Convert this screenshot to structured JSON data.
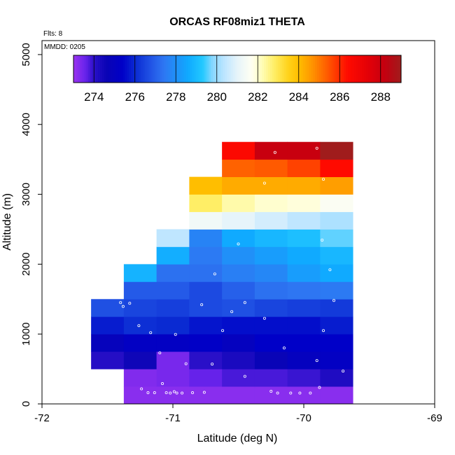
{
  "colors": {
    "background": "#ffffff",
    "frame": "#000000",
    "point": "#ffffff",
    "palette": [
      [
        273,
        "#9b34f0"
      ],
      [
        273.6,
        "#6622ea"
      ],
      [
        274,
        "#2a10c8"
      ],
      [
        274.6,
        "#0a04b5"
      ],
      [
        275.4,
        "#0000c8"
      ],
      [
        276,
        "#0a2ad2"
      ],
      [
        276.8,
        "#2255e6"
      ],
      [
        277.4,
        "#2e76f2"
      ],
      [
        278,
        "#2090f8"
      ],
      [
        278.6,
        "#10aaff"
      ],
      [
        279.3,
        "#22c8ff"
      ],
      [
        279.8,
        "#8ad8ff"
      ],
      [
        280.4,
        "#bfe6ff"
      ],
      [
        281,
        "#e6f4fa"
      ],
      [
        281.7,
        "#fffff2"
      ],
      [
        282.2,
        "#fffdb8"
      ],
      [
        282.8,
        "#ffee66"
      ],
      [
        283.5,
        "#ffd21a"
      ],
      [
        284,
        "#ffbe00"
      ],
      [
        284.6,
        "#ff9800"
      ],
      [
        285.2,
        "#ff6a00"
      ],
      [
        285.8,
        "#ff3a00"
      ],
      [
        286.4,
        "#ff0a00"
      ],
      [
        287.5,
        "#e00008"
      ],
      [
        288.2,
        "#c40010"
      ],
      [
        289,
        "#a01c1c"
      ]
    ]
  },
  "header": {
    "title": "ORCAS RF08miz1 THETA",
    "flights_label": "Flts: 8",
    "date_label": "MMDD: 0205"
  },
  "chart_data": {
    "type": "heatmap",
    "title": "ORCAS RF08miz1 THETA",
    "xlabel": "Latitude (deg N)",
    "ylabel": "Altitude (m)",
    "xlim": [
      -72,
      -69
    ],
    "ylim": [
      0,
      5200
    ],
    "x_ticks": [
      -72,
      -71,
      -70,
      -69
    ],
    "x_tick_labels": [
      "-72",
      "-71",
      "-70",
      "-69"
    ],
    "y_ticks": [
      0,
      1000,
      2000,
      3000,
      4000,
      5000
    ],
    "y_tick_labels": [
      "0",
      "1000",
      "2000",
      "3000",
      "4000",
      "5000"
    ],
    "colorbar": {
      "range": [
        273,
        289
      ],
      "ticks": [
        274,
        276,
        278,
        280,
        282,
        284,
        286,
        288
      ],
      "tick_labels": [
        "274",
        "276",
        "278",
        "280",
        "282",
        "284",
        "286",
        "288"
      ]
    },
    "cell_width_deg": 0.25,
    "cell_height_m": 250,
    "cells": [
      {
        "lon": -71.25,
        "alt": 0,
        "value": 273.2
      },
      {
        "lon": -71.0,
        "alt": 0,
        "value": 273.2
      },
      {
        "lon": -70.75,
        "alt": 0,
        "value": 273.2
      },
      {
        "lon": -70.5,
        "alt": 0,
        "value": 273.2
      },
      {
        "lon": -70.25,
        "alt": 0,
        "value": 273.2
      },
      {
        "lon": -70.0,
        "alt": 0,
        "value": 273.2
      },
      {
        "lon": -69.75,
        "alt": 0,
        "value": 273.2
      },
      {
        "lon": -71.25,
        "alt": 250,
        "value": 273.3
      },
      {
        "lon": -71.0,
        "alt": 250,
        "value": 273.4
      },
      {
        "lon": -70.75,
        "alt": 250,
        "value": 273.6
      },
      {
        "lon": -70.5,
        "alt": 250,
        "value": 273.8
      },
      {
        "lon": -70.25,
        "alt": 250,
        "value": 273.8
      },
      {
        "lon": -70.0,
        "alt": 250,
        "value": 273.9
      },
      {
        "lon": -69.75,
        "alt": 250,
        "value": 274.2
      },
      {
        "lon": -71.5,
        "alt": 500,
        "value": 274.1
      },
      {
        "lon": -71.25,
        "alt": 500,
        "value": 274.5
      },
      {
        "lon": -71.0,
        "alt": 500,
        "value": 273.4
      },
      {
        "lon": -70.75,
        "alt": 500,
        "value": 274.0
      },
      {
        "lon": -70.5,
        "alt": 500,
        "value": 274.3
      },
      {
        "lon": -70.25,
        "alt": 500,
        "value": 274.7
      },
      {
        "lon": -70.0,
        "alt": 500,
        "value": 275.0
      },
      {
        "lon": -69.75,
        "alt": 500,
        "value": 275.2
      },
      {
        "lon": -71.5,
        "alt": 750,
        "value": 274.9
      },
      {
        "lon": -71.25,
        "alt": 750,
        "value": 275.2
      },
      {
        "lon": -71.0,
        "alt": 750,
        "value": 275.2
      },
      {
        "lon": -70.75,
        "alt": 750,
        "value": 275.3
      },
      {
        "lon": -70.5,
        "alt": 750,
        "value": 275.0
      },
      {
        "lon": -70.25,
        "alt": 750,
        "value": 275.4
      },
      {
        "lon": -70.0,
        "alt": 750,
        "value": 275.4
      },
      {
        "lon": -69.75,
        "alt": 750,
        "value": 275.4
      },
      {
        "lon": -71.5,
        "alt": 1000,
        "value": 275.8
      },
      {
        "lon": -71.25,
        "alt": 1000,
        "value": 276.1
      },
      {
        "lon": -71.0,
        "alt": 1000,
        "value": 276.0
      },
      {
        "lon": -70.75,
        "alt": 1000,
        "value": 275.7
      },
      {
        "lon": -70.5,
        "alt": 1000,
        "value": 275.6
      },
      {
        "lon": -70.25,
        "alt": 1000,
        "value": 275.6
      },
      {
        "lon": -70.0,
        "alt": 1000,
        "value": 275.6
      },
      {
        "lon": -69.75,
        "alt": 1000,
        "value": 275.8
      },
      {
        "lon": -71.5,
        "alt": 1250,
        "value": 276.7
      },
      {
        "lon": -71.25,
        "alt": 1250,
        "value": 276.5
      },
      {
        "lon": -71.0,
        "alt": 1250,
        "value": 276.4
      },
      {
        "lon": -70.75,
        "alt": 1250,
        "value": 276.6
      },
      {
        "lon": -70.5,
        "alt": 1250,
        "value": 276.7
      },
      {
        "lon": -70.25,
        "alt": 1250,
        "value": 276.5
      },
      {
        "lon": -70.0,
        "alt": 1250,
        "value": 276.4
      },
      {
        "lon": -69.75,
        "alt": 1250,
        "value": 276.3
      },
      {
        "lon": -71.25,
        "alt": 1500,
        "value": 276.9
      },
      {
        "lon": -71.0,
        "alt": 1500,
        "value": 276.9
      },
      {
        "lon": -70.75,
        "alt": 1500,
        "value": 276.6
      },
      {
        "lon": -70.5,
        "alt": 1500,
        "value": 277.0
      },
      {
        "lon": -70.25,
        "alt": 1500,
        "value": 277.3
      },
      {
        "lon": -70.0,
        "alt": 1500,
        "value": 277.4
      },
      {
        "lon": -69.75,
        "alt": 1500,
        "value": 277.5
      },
      {
        "lon": -71.25,
        "alt": 1750,
        "value": 278.8
      },
      {
        "lon": -71.0,
        "alt": 1750,
        "value": 277.3
      },
      {
        "lon": -70.75,
        "alt": 1750,
        "value": 277.3
      },
      {
        "lon": -70.5,
        "alt": 1750,
        "value": 277.6
      },
      {
        "lon": -70.25,
        "alt": 1750,
        "value": 277.8
      },
      {
        "lon": -70.0,
        "alt": 1750,
        "value": 278.3
      },
      {
        "lon": -69.75,
        "alt": 1750,
        "value": 278.6
      },
      {
        "lon": -71.0,
        "alt": 2000,
        "value": 278.7
      },
      {
        "lon": -70.75,
        "alt": 2000,
        "value": 277.5
      },
      {
        "lon": -70.5,
        "alt": 2000,
        "value": 278.0
      },
      {
        "lon": -70.25,
        "alt": 2000,
        "value": 278.3
      },
      {
        "lon": -70.0,
        "alt": 2000,
        "value": 278.6
      },
      {
        "lon": -69.75,
        "alt": 2000,
        "value": 278.9
      },
      {
        "lon": -71.0,
        "alt": 2250,
        "value": 280.4
      },
      {
        "lon": -70.75,
        "alt": 2250,
        "value": 277.7
      },
      {
        "lon": -70.5,
        "alt": 2250,
        "value": 278.6
      },
      {
        "lon": -70.25,
        "alt": 2250,
        "value": 278.9
      },
      {
        "lon": -70.0,
        "alt": 2250,
        "value": 279.1
      },
      {
        "lon": -69.75,
        "alt": 2250,
        "value": 279.6
      },
      {
        "lon": -70.75,
        "alt": 2500,
        "value": 281.3
      },
      {
        "lon": -70.5,
        "alt": 2500,
        "value": 281.0
      },
      {
        "lon": -70.25,
        "alt": 2500,
        "value": 280.7
      },
      {
        "lon": -70.0,
        "alt": 2500,
        "value": 280.4
      },
      {
        "lon": -69.75,
        "alt": 2500,
        "value": 280.2
      },
      {
        "lon": -70.75,
        "alt": 2750,
        "value": 282.8
      },
      {
        "lon": -70.5,
        "alt": 2750,
        "value": 282.3
      },
      {
        "lon": -70.25,
        "alt": 2750,
        "value": 282.0
      },
      {
        "lon": -70.0,
        "alt": 2750,
        "value": 281.9
      },
      {
        "lon": -69.75,
        "alt": 2750,
        "value": 281.6
      },
      {
        "lon": -70.75,
        "alt": 3000,
        "value": 284.0
      },
      {
        "lon": -70.5,
        "alt": 3000,
        "value": 284.3
      },
      {
        "lon": -70.25,
        "alt": 3000,
        "value": 284.3
      },
      {
        "lon": -70.0,
        "alt": 3000,
        "value": 284.3
      },
      {
        "lon": -69.75,
        "alt": 3000,
        "value": 284.5
      },
      {
        "lon": -70.5,
        "alt": 3250,
        "value": 285.3
      },
      {
        "lon": -70.25,
        "alt": 3250,
        "value": 285.4
      },
      {
        "lon": -70.0,
        "alt": 3250,
        "value": 285.7
      },
      {
        "lon": -69.75,
        "alt": 3250,
        "value": 286.4
      },
      {
        "lon": -70.5,
        "alt": 3500,
        "value": 286.5
      },
      {
        "lon": -70.25,
        "alt": 3500,
        "value": 288.1
      },
      {
        "lon": -70.0,
        "alt": 3500,
        "value": 288.1
      },
      {
        "lon": -69.75,
        "alt": 3500,
        "value": 289.0
      }
    ],
    "points": [
      [
        -71.24,
        215
      ],
      [
        -71.19,
        160
      ],
      [
        -71.14,
        160
      ],
      [
        -71.08,
        290
      ],
      [
        -71.05,
        160
      ],
      [
        -71.02,
        155
      ],
      [
        -70.99,
        175
      ],
      [
        -70.97,
        155
      ],
      [
        -70.93,
        155
      ],
      [
        -70.85,
        160
      ],
      [
        -70.76,
        165
      ],
      [
        -70.7,
        570
      ],
      [
        -70.45,
        395
      ],
      [
        -70.25,
        180
      ],
      [
        -70.2,
        155
      ],
      [
        -70.1,
        155
      ],
      [
        -70.03,
        155
      ],
      [
        -69.95,
        155
      ],
      [
        -69.88,
        235
      ],
      [
        -69.7,
        470
      ],
      [
        -71.38,
        1395
      ],
      [
        -71.4,
        1450
      ],
      [
        -71.33,
        1440
      ],
      [
        -71.26,
        1120
      ],
      [
        -71.17,
        1020
      ],
      [
        -71.1,
        730
      ],
      [
        -70.98,
        995
      ],
      [
        -70.9,
        575
      ],
      [
        -70.78,
        1420
      ],
      [
        -70.62,
        1050
      ],
      [
        -70.55,
        1320
      ],
      [
        -70.45,
        1450
      ],
      [
        -70.3,
        1225
      ],
      [
        -70.15,
        800
      ],
      [
        -69.85,
        1050
      ],
      [
        -69.77,
        1480
      ],
      [
        -69.9,
        620
      ],
      [
        -70.68,
        1860
      ],
      [
        -70.5,
        2290
      ],
      [
        -69.86,
        2345
      ],
      [
        -69.8,
        1920
      ],
      [
        -70.3,
        3160
      ],
      [
        -70.22,
        3600
      ],
      [
        -69.9,
        3660
      ],
      [
        -69.85,
        3215
      ]
    ]
  }
}
